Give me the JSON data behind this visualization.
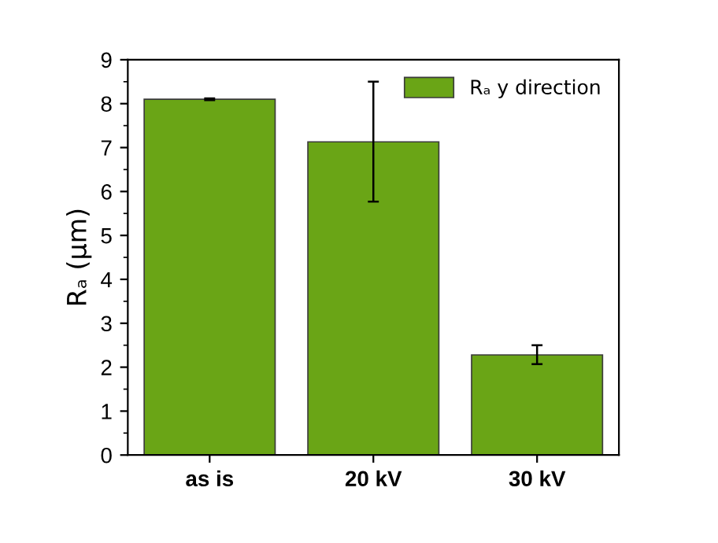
{
  "chart_data": {
    "type": "bar",
    "ylabel": "Rₐ (μm)",
    "categories": [
      "as is",
      "20 kV",
      "30 kV"
    ],
    "series": [
      {
        "name": "Rₐ y direction",
        "color": "#6aa516",
        "values": [
          8.1,
          7.13,
          2.28
        ],
        "errors": [
          0.02,
          [
            5.77,
            8.5
          ],
          [
            2.07,
            2.5
          ]
        ]
      }
    ],
    "ylim": [
      0,
      9
    ],
    "yticks": [
      0,
      1,
      2,
      3,
      4,
      5,
      6,
      7,
      8,
      9
    ],
    "legend": "top right",
    "grid": false
  }
}
